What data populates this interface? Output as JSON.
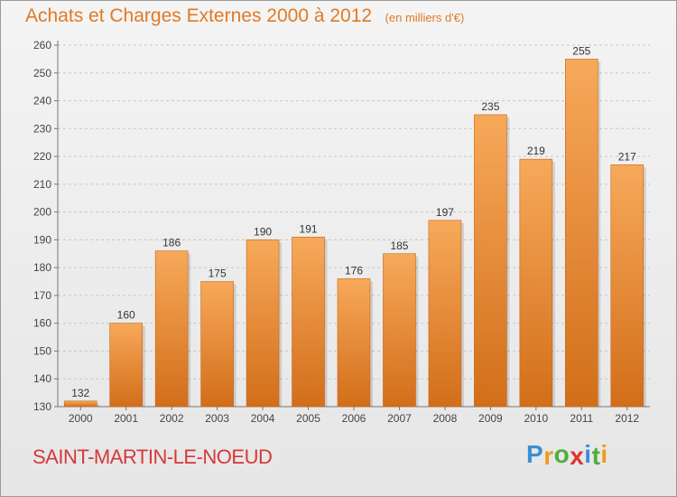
{
  "header": {
    "title": "Achats et Charges Externes 2000 à 2012",
    "subtitle": "(en milliers d'€)"
  },
  "footer": {
    "commune": "SAINT-MARTIN-LE-NOEUD",
    "logo_letters": [
      {
        "ch": "P",
        "color": "#3a8fd6"
      },
      {
        "ch": "r",
        "color": "#f09a1e"
      },
      {
        "ch": "o",
        "color": "#4fae3c"
      },
      {
        "ch": "x",
        "color": "#e0352b"
      },
      {
        "ch": "i",
        "color": "#3a8fd6"
      },
      {
        "ch": "t",
        "color": "#4fae3c"
      },
      {
        "ch": "i",
        "color": "#f09a1e"
      }
    ]
  },
  "chart_data": {
    "type": "bar",
    "title": "Achats et Charges Externes 2000 à 2012",
    "subtitle": "(en milliers d'€)",
    "xlabel": "",
    "ylabel": "",
    "categories": [
      "2000",
      "2001",
      "2002",
      "2003",
      "2004",
      "2005",
      "2006",
      "2007",
      "2008",
      "2009",
      "2010",
      "2011",
      "2012"
    ],
    "values": [
      132,
      160,
      186,
      175,
      190,
      191,
      176,
      185,
      197,
      235,
      219,
      255,
      217
    ],
    "data_labels": [
      "132",
      "160",
      "186",
      "175",
      "190",
      "191",
      "176",
      "185",
      "197",
      "235",
      "219",
      "255",
      "217"
    ],
    "ylim": [
      130,
      260
    ],
    "yticks": [
      130,
      140,
      150,
      160,
      170,
      180,
      190,
      200,
      210,
      220,
      230,
      240,
      250,
      260
    ],
    "ytick_labels": [
      "130",
      "140",
      "150",
      "160",
      "170",
      "180",
      "190",
      "200",
      "210",
      "220",
      "230",
      "240",
      "250",
      "260"
    ],
    "grid": "horizontal-dashed",
    "legend": "none",
    "colors": {
      "bar_top": "#f7a95a",
      "bar_bottom": "#d26e1a",
      "accent": "#e07a26"
    }
  }
}
